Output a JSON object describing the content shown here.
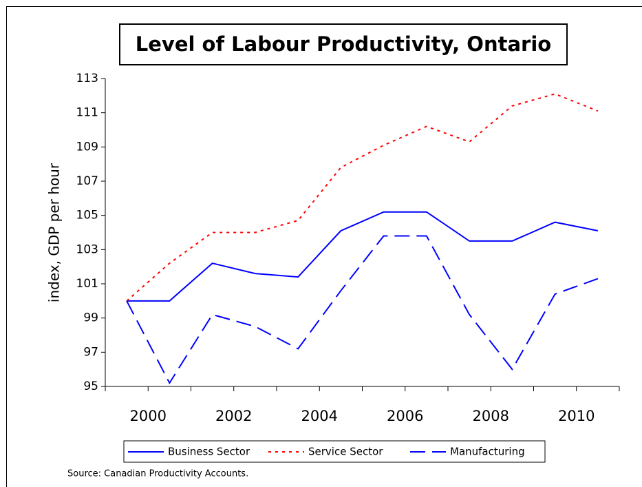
{
  "chart_data": {
    "type": "line",
    "title": "Level of Labour Productivity, Ontario",
    "y_label": "index, GDP per hour",
    "note": "Source:   Canadian Productivity Accounts.",
    "categories": [
      "2000",
      null,
      "2002",
      null,
      "2004",
      null,
      "2006",
      null,
      "2008",
      null,
      "2010",
      null
    ],
    "series": [
      {
        "name": "Business Sector",
        "color": "#0000ff",
        "dash": "solid",
        "values": [
          100,
          100,
          102.2,
          101.6,
          101.4,
          104.1,
          105.2,
          105.2,
          103.5,
          103.5,
          104.6,
          104.1
        ]
      },
      {
        "name": "Service Sector",
        "color": "#ff0000",
        "dash": "dotted",
        "values": [
          100,
          102.2,
          104,
          104,
          104.7,
          107.8,
          109.1,
          110.2,
          109.3,
          111.4,
          112.1,
          111.1
        ]
      },
      {
        "name": "Manufacturing",
        "color": "#0000ff",
        "dash": "dashed",
        "values": [
          100,
          95.2,
          99.2,
          98.5,
          97.2,
          100.6,
          103.8,
          103.8,
          99.2,
          96,
          100.4,
          101.3
        ]
      }
    ],
    "ylim": [
      95,
      113
    ],
    "yticks": [
      95,
      97,
      99,
      101,
      103,
      105,
      107,
      109,
      111,
      113
    ],
    "legend": "bottom"
  }
}
